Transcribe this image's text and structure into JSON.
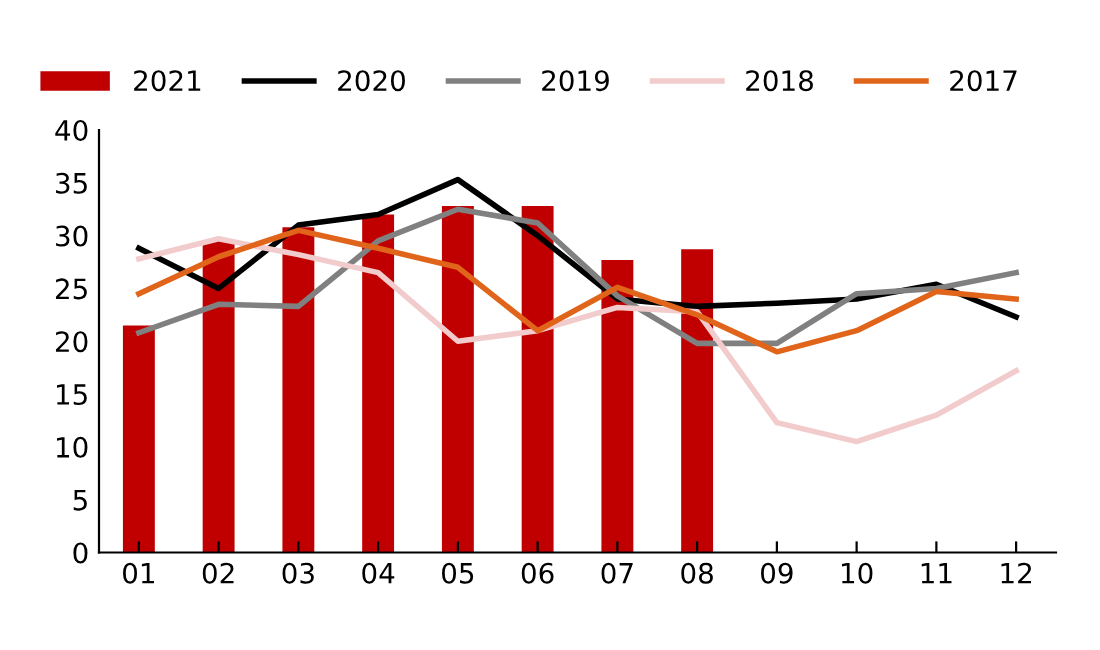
{
  "chart_data": {
    "type": "bar",
    "categories": [
      "01",
      "02",
      "03",
      "04",
      "05",
      "06",
      "07",
      "08",
      "09",
      "10",
      "11",
      "12"
    ],
    "series": [
      {
        "name": "2021",
        "color": "#c00000",
        "values": [
          21.5,
          29.5,
          30.8,
          32.0,
          32.8,
          32.8,
          27.7,
          28.7,
          null,
          null,
          null,
          null
        ]
      },
      {
        "name": "2020",
        "type": "line",
        "color": "#000000",
        "values": [
          28.8,
          25.0,
          31.0,
          32.0,
          35.3,
          30.0,
          24.0,
          23.3,
          23.6,
          24.0,
          25.4,
          22.3
        ]
      },
      {
        "name": "2019",
        "type": "line",
        "color": "#808080",
        "values": [
          20.8,
          23.5,
          23.3,
          29.5,
          32.5,
          31.2,
          24.3,
          19.8,
          19.8,
          24.5,
          25.0,
          26.5
        ]
      },
      {
        "name": "2018",
        "type": "line",
        "color": "#f2cccc",
        "values": [
          27.8,
          29.7,
          28.2,
          26.5,
          20.0,
          21.0,
          23.2,
          22.8,
          12.3,
          10.5,
          13.0,
          17.2
        ]
      },
      {
        "name": "2017",
        "type": "line",
        "color": "#e0641a",
        "values": [
          24.5,
          28.0,
          30.5,
          28.8,
          27.0,
          21.0,
          25.1,
          22.5,
          19.0,
          21.0,
          24.7,
          24.0
        ]
      }
    ],
    "ylim": [
      0,
      40
    ],
    "yticks": [
      0,
      5,
      10,
      15,
      20,
      25,
      30,
      35,
      40
    ],
    "grid": false,
    "legend": "top"
  }
}
